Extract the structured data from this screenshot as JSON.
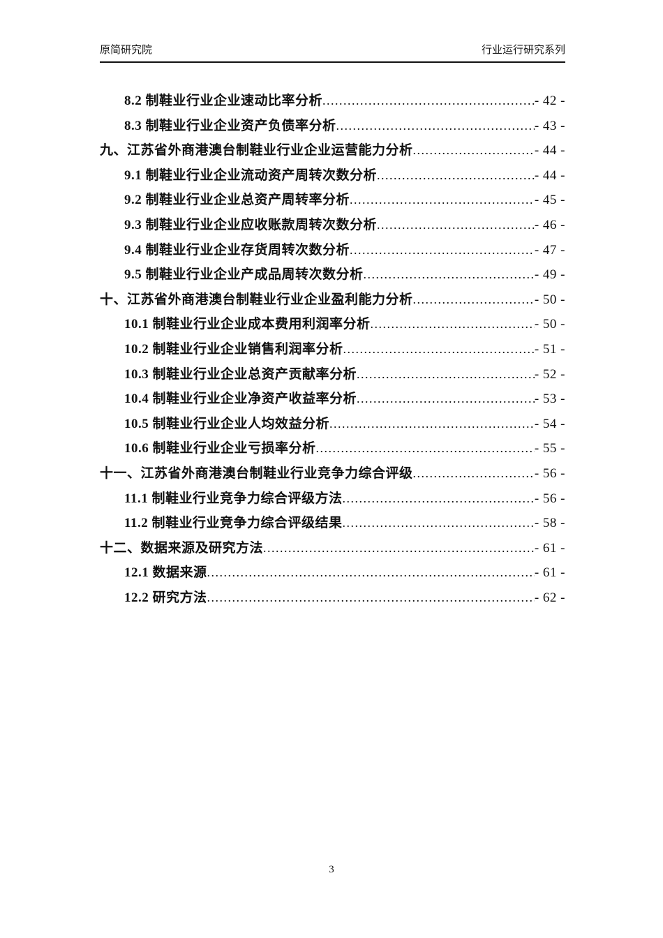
{
  "header": {
    "left_text": "原简研究院",
    "right_text": "行业运行研究系列"
  },
  "toc": {
    "entries": [
      {
        "level": 2,
        "label": "8.2 制鞋业行业企业速动比率分析",
        "page": "- 42 -"
      },
      {
        "level": 2,
        "label": "8.3 制鞋业行业企业资产负债率分析",
        "page": "- 43 -"
      },
      {
        "level": 1,
        "label": "九、江苏省外商港澳台制鞋业行业企业运营能力分析",
        "page": "- 44 -"
      },
      {
        "level": 2,
        "label": "9.1 制鞋业行业企业流动资产周转次数分析",
        "page": "- 44 -"
      },
      {
        "level": 2,
        "label": "9.2 制鞋业行业企业总资产周转率分析",
        "page": "- 45 -"
      },
      {
        "level": 2,
        "label": "9.3 制鞋业行业企业应收账款周转次数分析",
        "page": "- 46 -"
      },
      {
        "level": 2,
        "label": "9.4 制鞋业行业企业存货周转次数分析",
        "page": "- 47 -"
      },
      {
        "level": 2,
        "label": "9.5 制鞋业行业企业产成品周转次数分析",
        "page": "- 49 -"
      },
      {
        "level": 1,
        "label": "十、江苏省外商港澳台制鞋业行业企业盈利能力分析",
        "page": "- 50 -"
      },
      {
        "level": 2,
        "label": "10.1 制鞋业行业企业成本费用利润率分析",
        "page": "- 50 -"
      },
      {
        "level": 2,
        "label": "10.2 制鞋业行业企业销售利润率分析",
        "page": "- 51 -"
      },
      {
        "level": 2,
        "label": "10.3 制鞋业行业企业总资产贡献率分析",
        "page": "- 52 -"
      },
      {
        "level": 2,
        "label": "10.4 制鞋业行业企业净资产收益率分析",
        "page": "- 53 -"
      },
      {
        "level": 2,
        "label": "10.5 制鞋业行业企业人均效益分析",
        "page": "- 54 -"
      },
      {
        "level": 2,
        "label": "10.6 制鞋业行业企业亏损率分析",
        "page": "- 55 -"
      },
      {
        "level": 1,
        "label": "十一、江苏省外商港澳台制鞋业行业竞争力综合评级",
        "page": "- 56 -"
      },
      {
        "level": 2,
        "label": "11.1 制鞋业行业竞争力综合评级方法",
        "page": "- 56 -"
      },
      {
        "level": 2,
        "label": "11.2 制鞋业行业竞争力综合评级结果",
        "page": "- 58 -"
      },
      {
        "level": 1,
        "label": "十二、数据来源及研究方法",
        "page": "- 61 -"
      },
      {
        "level": 2,
        "label": "12.1 数据来源",
        "page": "- 61 -"
      },
      {
        "level": 2,
        "label": "12.2 研究方法",
        "page": "- 62 -"
      }
    ]
  },
  "footer": {
    "page_number": "3"
  }
}
